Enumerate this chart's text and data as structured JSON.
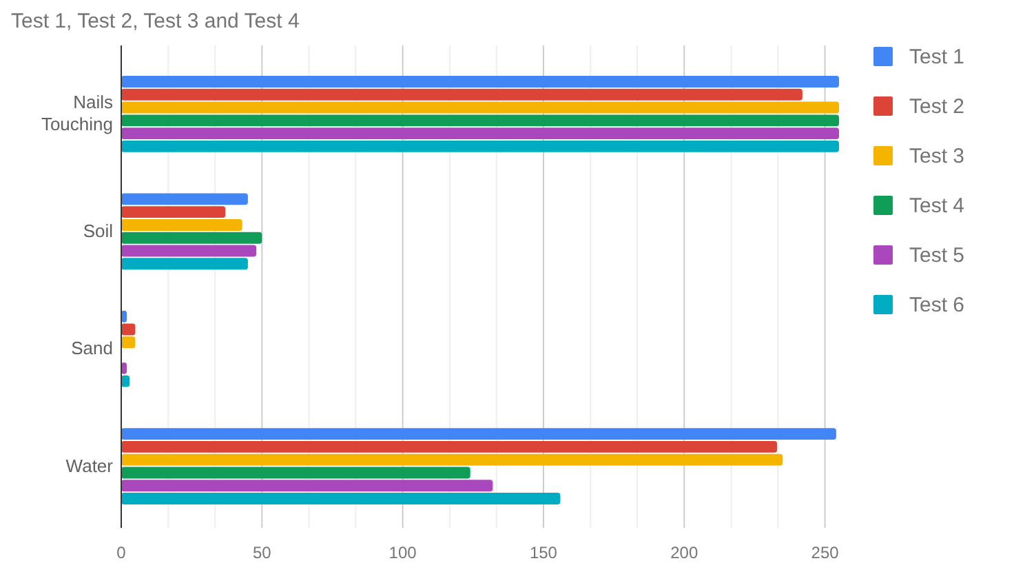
{
  "chart_data": {
    "type": "bar",
    "orientation": "horizontal",
    "title": "Test 1, Test 2, Test 3 and Test 4",
    "categories": [
      "Nails Touching",
      "Soil",
      "Sand",
      "Water"
    ],
    "series": [
      {
        "name": "Test 1",
        "color": "#4285f4",
        "values": [
          255,
          45,
          2,
          254
        ]
      },
      {
        "name": "Test 2",
        "color": "#db4437",
        "values": [
          242,
          37,
          5,
          233
        ]
      },
      {
        "name": "Test 3",
        "color": "#f4b400",
        "values": [
          255,
          43,
          5,
          235
        ]
      },
      {
        "name": "Test 4",
        "color": "#0f9d58",
        "values": [
          255,
          50,
          0,
          124
        ]
      },
      {
        "name": "Test 5",
        "color": "#ab47bc",
        "values": [
          255,
          48,
          2,
          132
        ]
      },
      {
        "name": "Test 6",
        "color": "#00acc1",
        "values": [
          255,
          45,
          3,
          156
        ]
      }
    ],
    "xlim": [
      0,
      255
    ],
    "xticks": [
      0,
      {
        "value": 16.7,
        "label": null
      },
      {
        "value": 33.3,
        "label": null
      },
      50,
      {
        "value": 66.7,
        "label": null
      },
      {
        "value": 83.3,
        "label": null
      },
      100,
      {
        "value": 116.7,
        "label": null
      },
      {
        "value": 133.3,
        "label": null
      },
      150,
      {
        "value": 166.7,
        "label": null
      },
      {
        "value": 183.3,
        "label": null
      },
      200,
      {
        "value": 216.7,
        "label": null
      },
      {
        "value": 233.3,
        "label": null
      },
      250
    ],
    "grid": "x",
    "legend": "right"
  }
}
